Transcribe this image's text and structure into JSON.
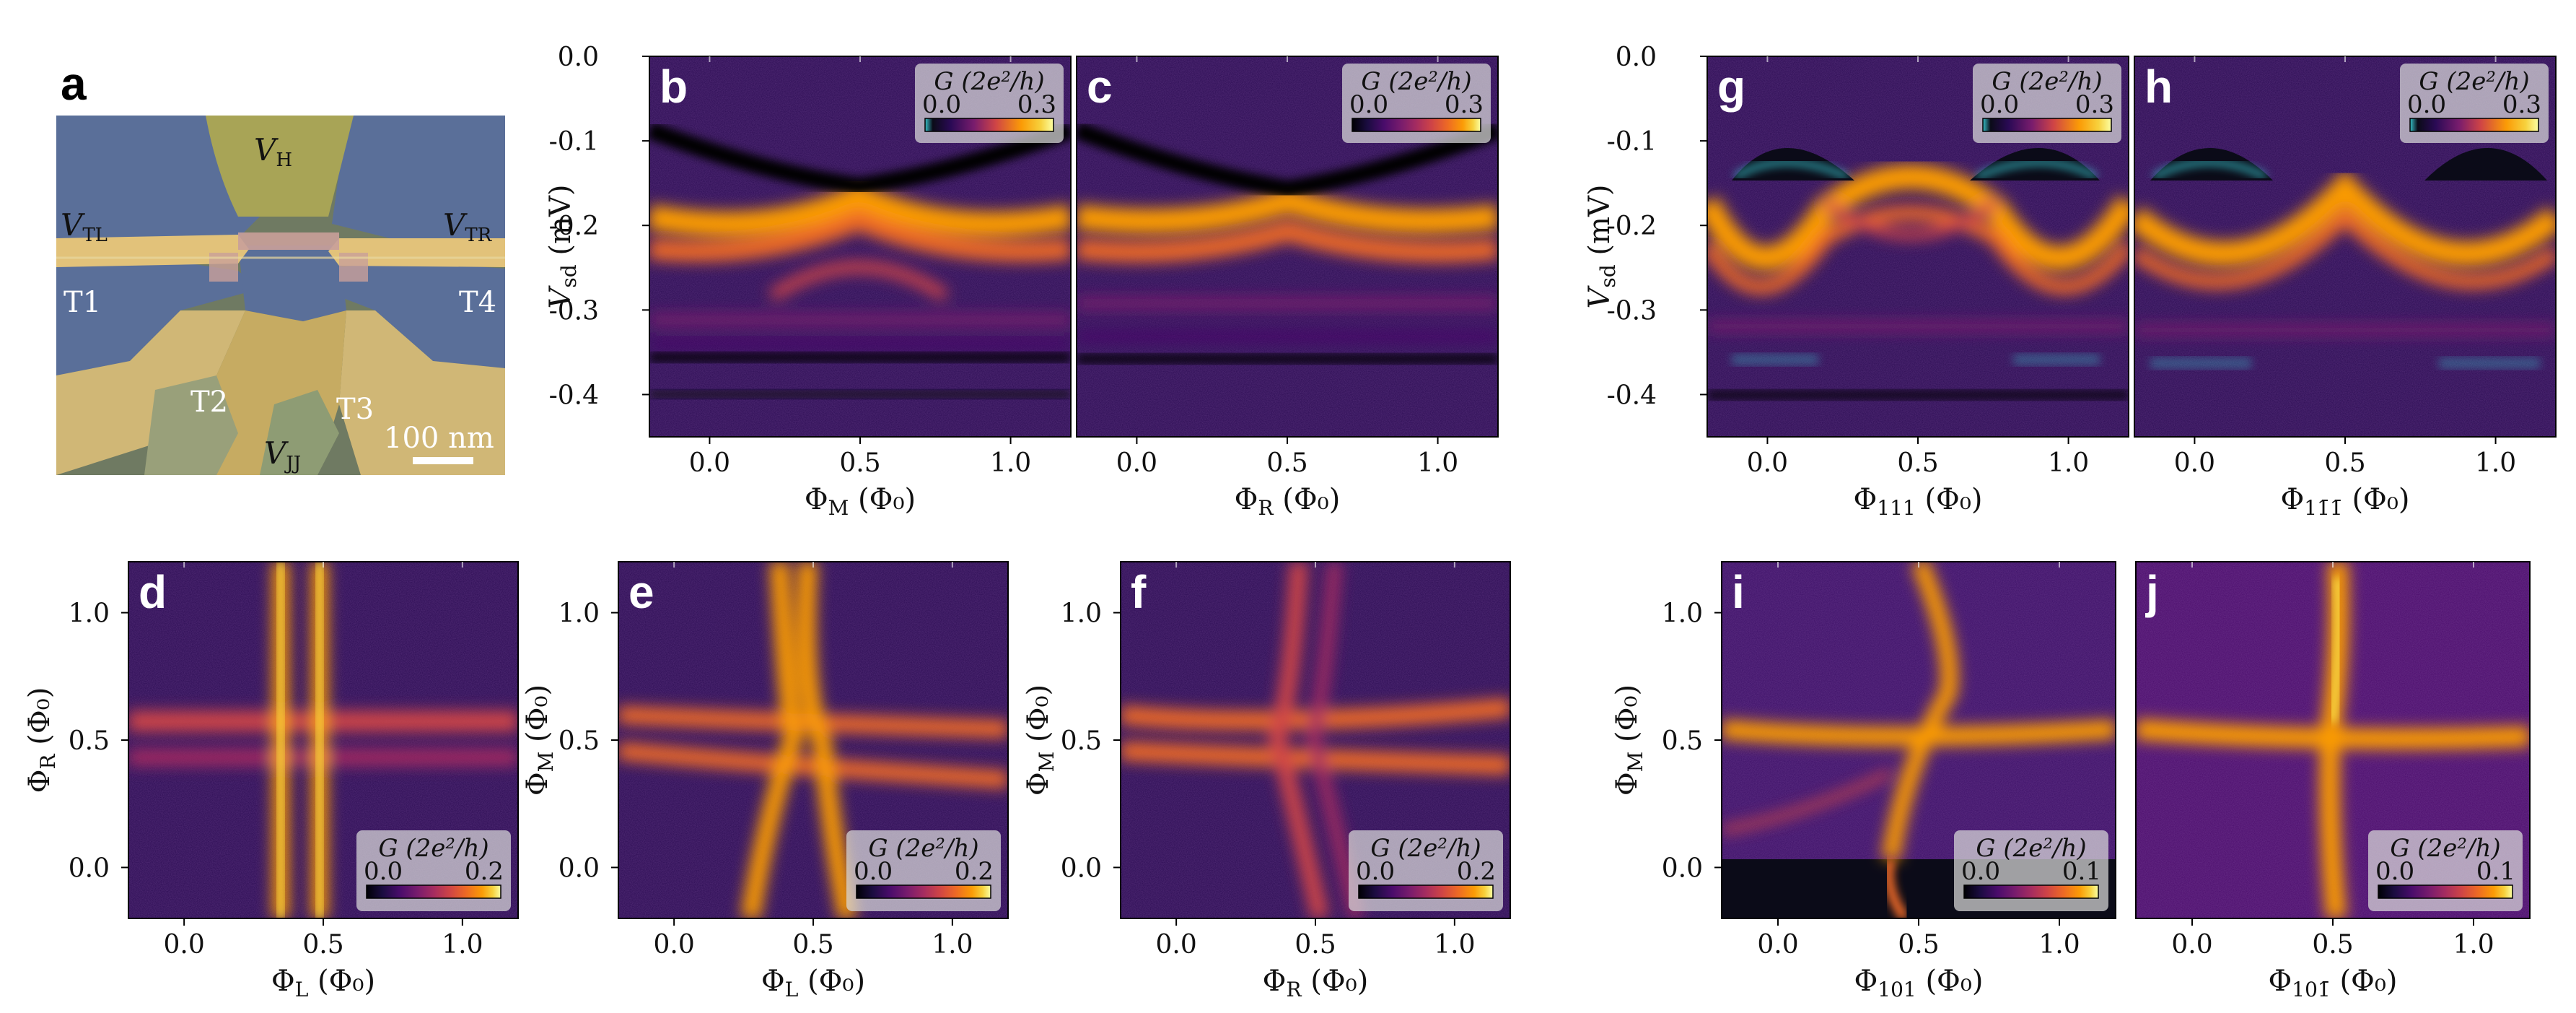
{
  "chart_data": [
    {
      "panel": "a",
      "type": "image",
      "image_kind": "false-colour SEM micrograph of device",
      "labels": [
        {
          "id": "vh",
          "text": "V",
          "sub": "H"
        },
        {
          "id": "vtl",
          "text": "V",
          "sub": "TL"
        },
        {
          "id": "vtr",
          "text": "V",
          "sub": "TR"
        },
        {
          "id": "t1",
          "text": "T1"
        },
        {
          "id": "t2",
          "text": "T2"
        },
        {
          "id": "t3",
          "text": "T3"
        },
        {
          "id": "t4",
          "text": "T4"
        },
        {
          "id": "vjj",
          "text": "V",
          "sub": "JJ"
        }
      ],
      "scalebar_label": "100 nm",
      "colors": {
        "background": "#6f7a62",
        "gate": "#e2c27a",
        "island": "#5a6f99",
        "junction": "#c9a09a"
      }
    },
    {
      "panel": "b",
      "type": "heatmap",
      "x_label": "Φ",
      "x_sub": "M",
      "x_unit": "(Φ₀)",
      "y_label": "V",
      "y_sub": "sd",
      "y_unit": "(mV)",
      "xlim": [
        -0.2,
        1.2
      ],
      "ylim": [
        -0.45,
        0.0
      ],
      "x_ticks": [
        "0.0",
        "0.5",
        "1.0"
      ],
      "x_tick_values": [
        0.0,
        0.5,
        1.0
      ],
      "y_ticks": [
        "0.0",
        "-0.1",
        "-0.2",
        "-0.3",
        "-0.4"
      ],
      "y_tick_values": [
        0.0,
        -0.1,
        -0.2,
        -0.3,
        -0.4
      ],
      "colorbar": {
        "title": "G (2e²/h)",
        "min": "0.0",
        "max": "0.3"
      },
      "features": "Andreev bound states near -0.22 mV and -0.26 mV crossing near Φ=0.5"
    },
    {
      "panel": "c",
      "type": "heatmap",
      "x_label": "Φ",
      "x_sub": "R",
      "x_unit": "(Φ₀)",
      "xlim": [
        -0.2,
        1.2
      ],
      "ylim": [
        -0.45,
        0.0
      ],
      "x_ticks": [
        "0.0",
        "0.5",
        "1.0"
      ],
      "x_tick_values": [
        0.0,
        0.5,
        1.0
      ],
      "colorbar": {
        "title": "G (2e²/h)",
        "min": "0.0",
        "max": "0.3"
      }
    },
    {
      "panel": "d",
      "type": "heatmap",
      "x_label": "Φ",
      "x_sub": "L",
      "x_unit": "(Φ₀)",
      "y_label": "Φ",
      "y_sub": "R",
      "y_unit": "(Φ₀)",
      "xlim": [
        -0.2,
        1.2
      ],
      "ylim": [
        -0.2,
        1.2
      ],
      "x_ticks": [
        "0.0",
        "0.5",
        "1.0"
      ],
      "x_tick_values": [
        0.0,
        0.5,
        1.0
      ],
      "y_ticks": [
        "0.0",
        "0.5",
        "1.0"
      ],
      "y_tick_values": [
        0.0,
        0.5,
        1.0
      ],
      "colorbar": {
        "title": "G (2e²/h)",
        "min": "0.0",
        "max": "0.2"
      }
    },
    {
      "panel": "e",
      "type": "heatmap",
      "x_label": "Φ",
      "x_sub": "L",
      "x_unit": "(Φ₀)",
      "y_label": "Φ",
      "y_sub": "M",
      "y_unit": "(Φ₀)",
      "xlim": [
        -0.2,
        1.2
      ],
      "ylim": [
        -0.2,
        1.2
      ],
      "x_ticks": [
        "0.0",
        "0.5",
        "1.0"
      ],
      "x_tick_values": [
        0.0,
        0.5,
        1.0
      ],
      "y_ticks": [
        "0.0",
        "0.5",
        "1.0"
      ],
      "y_tick_values": [
        0.0,
        0.5,
        1.0
      ],
      "colorbar": {
        "title": "G (2e²/h)",
        "min": "0.0",
        "max": "0.2"
      }
    },
    {
      "panel": "f",
      "type": "heatmap",
      "x_label": "Φ",
      "x_sub": "R",
      "x_unit": "(Φ₀)",
      "y_label": "Φ",
      "y_sub": "M",
      "y_unit": "(Φ₀)",
      "xlim": [
        -0.2,
        1.2
      ],
      "ylim": [
        -0.2,
        1.2
      ],
      "x_ticks": [
        "0.0",
        "0.5",
        "1.0"
      ],
      "x_tick_values": [
        0.0,
        0.5,
        1.0
      ],
      "y_ticks": [
        "0.0",
        "0.5",
        "1.0"
      ],
      "y_tick_values": [
        0.0,
        0.5,
        1.0
      ],
      "colorbar": {
        "title": "G (2e²/h)",
        "min": "0.0",
        "max": "0.2"
      }
    },
    {
      "panel": "g",
      "type": "heatmap",
      "x_label": "Φ",
      "x_sub": "111",
      "x_unit": "(Φ₀)",
      "y_label": "V",
      "y_sub": "sd",
      "y_unit": "(mV)",
      "xlim": [
        -0.2,
        1.2
      ],
      "ylim": [
        -0.45,
        0.0
      ],
      "x_ticks": [
        "0.0",
        "0.5",
        "1.0"
      ],
      "x_tick_values": [
        0.0,
        0.5,
        1.0
      ],
      "y_ticks": [
        "0.0",
        "-0.1",
        "-0.2",
        "-0.3",
        "-0.4"
      ],
      "y_tick_values": [
        0.0,
        -0.1,
        -0.2,
        -0.3,
        -0.4
      ],
      "colorbar": {
        "title": "G (2e²/h)",
        "min": "0.0",
        "max": "0.3"
      }
    },
    {
      "panel": "h",
      "type": "heatmap",
      "x_label": "Φ",
      "x_sub": "11̄1̄",
      "x_unit": "(Φ₀)",
      "xlim": [
        -0.2,
        1.2
      ],
      "ylim": [
        -0.45,
        0.0
      ],
      "x_ticks": [
        "0.0",
        "0.5",
        "1.0"
      ],
      "x_tick_values": [
        0.0,
        0.5,
        1.0
      ],
      "colorbar": {
        "title": "G (2e²/h)",
        "min": "0.0",
        "max": "0.3"
      }
    },
    {
      "panel": "i",
      "type": "heatmap",
      "x_label": "Φ",
      "x_sub": "101",
      "x_unit": "(Φ₀)",
      "y_label": "Φ",
      "y_sub": "M",
      "y_unit": "(Φ₀)",
      "xlim": [
        -0.2,
        1.2
      ],
      "ylim": [
        -0.2,
        1.2
      ],
      "x_ticks": [
        "0.0",
        "0.5",
        "1.0"
      ],
      "x_tick_values": [
        0.0,
        0.5,
        1.0
      ],
      "y_ticks": [
        "0.0",
        "0.5",
        "1.0"
      ],
      "y_tick_values": [
        0.0,
        0.5,
        1.0
      ],
      "colorbar": {
        "title": "G (2e²/h)",
        "min": "0.0",
        "max": "0.1"
      }
    },
    {
      "panel": "j",
      "type": "heatmap",
      "x_label": "Φ",
      "x_sub": "101̄",
      "x_unit": "(Φ₀)",
      "xlim": [
        -0.2,
        1.2
      ],
      "ylim": [
        -0.2,
        1.2
      ],
      "x_ticks": [
        "0.0",
        "0.5",
        "1.0"
      ],
      "x_tick_values": [
        0.0,
        0.5,
        1.0
      ],
      "colorbar": {
        "title": "G (2e²/h)",
        "min": "0.0",
        "max": "0.1"
      }
    }
  ],
  "colormap": [
    "#000004",
    "#1b0c41",
    "#4a0c6b",
    "#781c6d",
    "#a52c60",
    "#cf4446",
    "#ed6925",
    "#fb9b06",
    "#f7d13d",
    "#fcffa4"
  ],
  "colormap_low": "#37c0c8"
}
